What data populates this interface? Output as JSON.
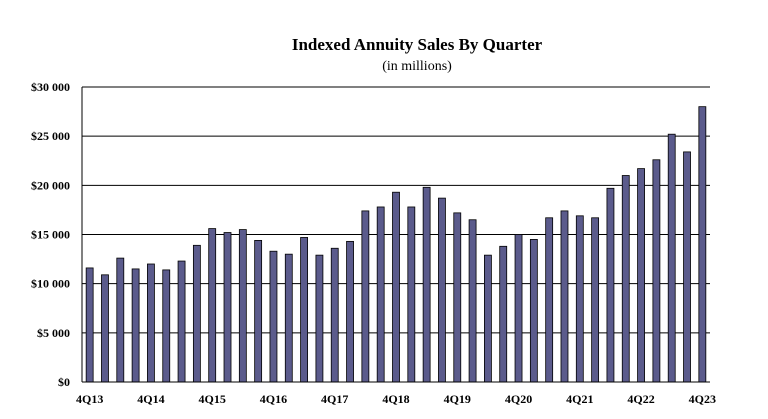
{
  "chart_data": {
    "type": "bar",
    "title": "Indexed Annuity Sales By Quarter",
    "subtitle": "(in millions)",
    "xlabel": "",
    "ylabel": "",
    "ylim": [
      0,
      30000
    ],
    "yticks": [
      0,
      5000,
      10000,
      15000,
      20000,
      25000,
      30000
    ],
    "ytick_labels": [
      "$0",
      "$5 000",
      "$10 000",
      "$15 000",
      "$20 000",
      "$25 000",
      "$30 000"
    ],
    "grid": "horizontal",
    "bar_color": "#5b5b8c",
    "categories": [
      "4Q13",
      "1Q14",
      "2Q14",
      "3Q14",
      "4Q14",
      "1Q15",
      "2Q15",
      "3Q15",
      "4Q15",
      "1Q16",
      "2Q16",
      "3Q16",
      "4Q16",
      "1Q17",
      "2Q17",
      "3Q17",
      "4Q17",
      "1Q18",
      "2Q18",
      "3Q18",
      "4Q18",
      "1Q19",
      "2Q19",
      "3Q19",
      "4Q19",
      "1Q20",
      "2Q20",
      "3Q20",
      "4Q20",
      "1Q21",
      "2Q21",
      "3Q21",
      "4Q21",
      "1Q22",
      "2Q22",
      "3Q22",
      "4Q22",
      "1Q23",
      "2Q23",
      "3Q23",
      "4Q23"
    ],
    "x_tick_labels": [
      "4Q13",
      "4Q14",
      "4Q15",
      "4Q16",
      "4Q17",
      "4Q18",
      "4Q19",
      "4Q20",
      "4Q21",
      "4Q22",
      "4Q23"
    ],
    "values": [
      11600,
      10900,
      12600,
      11500,
      12000,
      11400,
      12300,
      13900,
      15600,
      15200,
      15500,
      14400,
      13300,
      13000,
      14700,
      12900,
      13600,
      14300,
      17400,
      17800,
      19300,
      17800,
      19800,
      18700,
      17200,
      16500,
      12900,
      13800,
      15000,
      14500,
      16700,
      17400,
      16900,
      16700,
      19700,
      21000,
      21700,
      22600,
      25200,
      23400,
      28000
    ]
  }
}
